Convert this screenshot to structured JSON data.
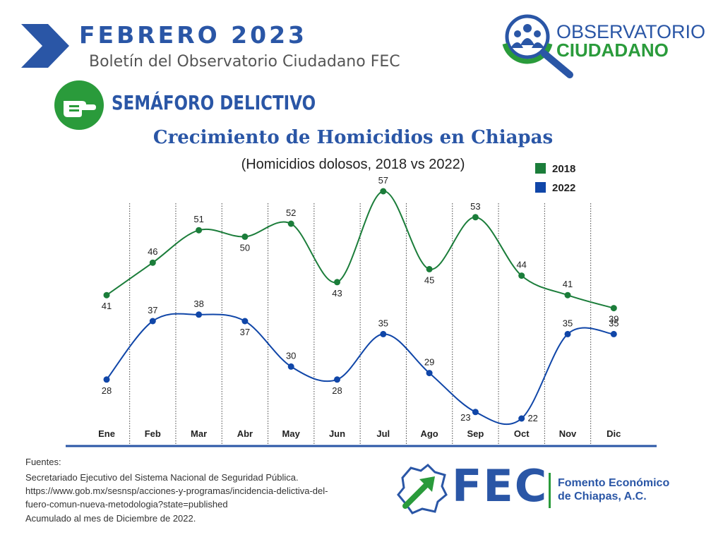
{
  "header": {
    "month_label": "FEBRERO  2023",
    "subtitle": "Boletín del Observatorio Ciudadano FEC",
    "section_title": "SEMÁFORO DELICTIVO"
  },
  "observatorio_logo": {
    "line1": "OBSERVATORIO",
    "line2": "CIUDADANO"
  },
  "colors": {
    "blue": "#2a56a6",
    "green": "#2a9b3b",
    "series_2018": "#1b7d3a",
    "series_2022": "#1046a8"
  },
  "icons": {
    "header_arrow": "chevron-right-icon",
    "section": "hand-point-icon",
    "logo": "magnifier-people-icon",
    "fec": "chiapas-map-arrow-icon"
  },
  "chart_data": {
    "type": "line",
    "title": "Crecimiento de Homicidios en Chiapas",
    "subtitle": "(Homicidios dolosos, 2018 vs 2022)",
    "categories": [
      "Ene",
      "Feb",
      "Mar",
      "Abr",
      "May",
      "Jun",
      "Jul",
      "Ago",
      "Sep",
      "Oct",
      "Nov",
      "Dic"
    ],
    "series": [
      {
        "name": "2018",
        "values": [
          41,
          46,
          51,
          50,
          52,
          43,
          57,
          45,
          53,
          44,
          41,
          39
        ]
      },
      {
        "name": "2022",
        "values": [
          28,
          37,
          38,
          37,
          30,
          28,
          35,
          29,
          23,
          22,
          35,
          35
        ]
      }
    ],
    "legend_position": "top-right",
    "grid": "vertical dotted",
    "ylim": [
      19,
      59
    ]
  },
  "footer": {
    "sources_label": "Fuentes:",
    "source_lines": [
      "Secretariado Ejecutivo del Sistema Nacional de Seguridad Pública.",
      "https://www.gob.mx/sesnsp/acciones-y-programas/incidencia-delictiva-del-",
      "fuero-comun-nueva-metodologia?state=published",
      "Acumulado al mes de Diciembre de 2022."
    ]
  },
  "fec_logo": {
    "wordmark": "FEC",
    "org_line1": "Fomento Económico",
    "org_line2": "de Chiapas, A.C."
  }
}
